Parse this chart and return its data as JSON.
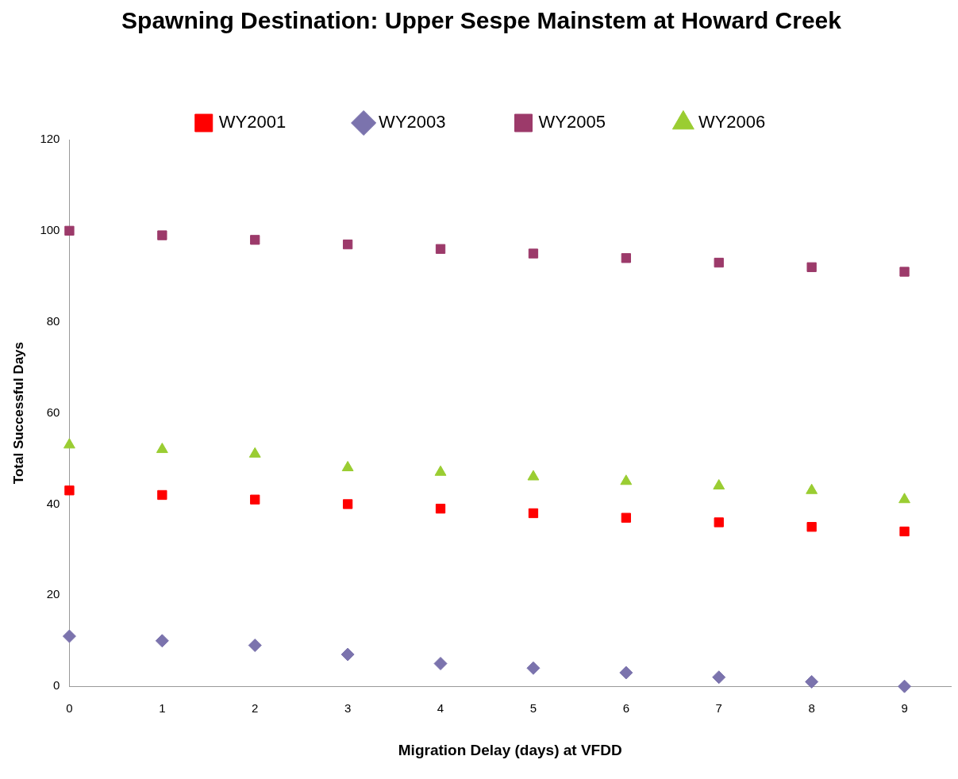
{
  "chart_data": {
    "type": "scatter",
    "title": "Spawning Destination: Upper Sespe Mainstem at Howard Creek",
    "xlabel": "Migration Delay (days) at VFDD",
    "ylabel": "Total Successful Days",
    "x": [
      0,
      1,
      2,
      3,
      4,
      5,
      6,
      7,
      8,
      9
    ],
    "series": [
      {
        "name": "WY2001",
        "color": "#ff0000",
        "marker": "square",
        "values": [
          43,
          42,
          41,
          40,
          39,
          38,
          37,
          36,
          35,
          34
        ]
      },
      {
        "name": "WY2003",
        "color": "#7b73ad",
        "marker": "diamond",
        "values": [
          11,
          10,
          9,
          7,
          5,
          4,
          3,
          2,
          1,
          0
        ]
      },
      {
        "name": "WY2005",
        "color": "#9c3a6a",
        "marker": "square",
        "values": [
          100,
          99,
          98,
          97,
          96,
          95,
          94,
          93,
          92,
          91
        ]
      },
      {
        "name": "WY2006",
        "color": "#9acd32",
        "marker": "triangle",
        "values": [
          53,
          52,
          51,
          48,
          47,
          46,
          45,
          44,
          43,
          41
        ]
      }
    ],
    "xlim": [
      0,
      9.5
    ],
    "xticks": [
      0,
      1,
      2,
      3,
      4,
      5,
      6,
      7,
      8,
      9
    ],
    "ylim": [
      0,
      120
    ],
    "yticks": [
      0,
      20,
      40,
      60,
      80,
      100,
      120
    ],
    "grid": false,
    "legend": "top"
  }
}
